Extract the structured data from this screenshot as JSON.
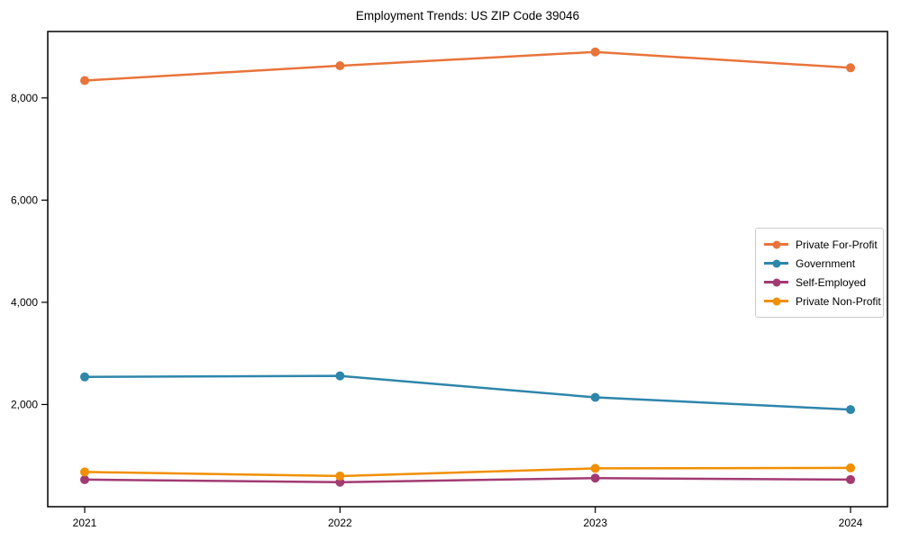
{
  "figure": {
    "title": "Employment Trends: US ZIP Code 39046"
  },
  "chart_data": {
    "type": "line",
    "title": "Employment Trends: US ZIP Code 39046",
    "xlabel": "",
    "ylabel": "",
    "grid": false,
    "legend_position": "center right",
    "categories": [
      "2021",
      "2022",
      "2023",
      "2024"
    ],
    "y_ticks": [
      2000,
      4000,
      6000,
      8000
    ],
    "y_tick_labels": [
      "2,000",
      "4,000",
      "6,000",
      "8,000"
    ],
    "ylim": [
      0,
      9300
    ],
    "series": [
      {
        "name": "Private For-Profit",
        "color": "#E8743B",
        "values": [
          8340,
          8630,
          8900,
          8590
        ]
      },
      {
        "name": "Government",
        "color": "#2E86AB",
        "values": [
          2540,
          2560,
          2140,
          1900
        ]
      },
      {
        "name": "Self-Employed",
        "color": "#A23B72",
        "values": [
          530,
          480,
          560,
          530
        ]
      },
      {
        "name": "Private Non-Profit",
        "color": "#F18F01",
        "values": [
          680,
          600,
          750,
          760
        ]
      }
    ]
  }
}
